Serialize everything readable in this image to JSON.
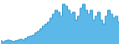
{
  "chart_data": {
    "type": "line",
    "series": [
      {
        "type": "area",
        "color": "#5bb8e8",
        "values": [
          8,
          5,
          8,
          10,
          8,
          6,
          8,
          10,
          12,
          10,
          14,
          18,
          20,
          22,
          28,
          32,
          38,
          45,
          50,
          55,
          65,
          75,
          85,
          80,
          70,
          100,
          95,
          85,
          75,
          80,
          60,
          70,
          90,
          100,
          85,
          75,
          85,
          60,
          70,
          80,
          60,
          50,
          70,
          85,
          75,
          65,
          70,
          55
        ]
      },
      {
        "type": "line",
        "color": "#3a9fd4",
        "values": [
          8,
          5,
          8,
          10,
          8,
          6,
          8,
          10,
          12,
          10,
          14,
          18,
          20,
          22,
          28,
          32,
          38,
          45,
          50,
          55,
          65,
          75,
          85,
          80,
          70,
          100,
          95,
          85,
          75,
          80,
          60,
          70,
          90,
          100,
          85,
          75,
          85,
          60,
          70,
          80,
          60,
          50,
          70,
          85,
          75,
          65,
          70,
          55
        ]
      }
    ],
    "xlim": [
      0,
      47
    ],
    "ylim": [
      0,
      108
    ],
    "line_style": "step",
    "grid": false,
    "tick_labels": false
  }
}
